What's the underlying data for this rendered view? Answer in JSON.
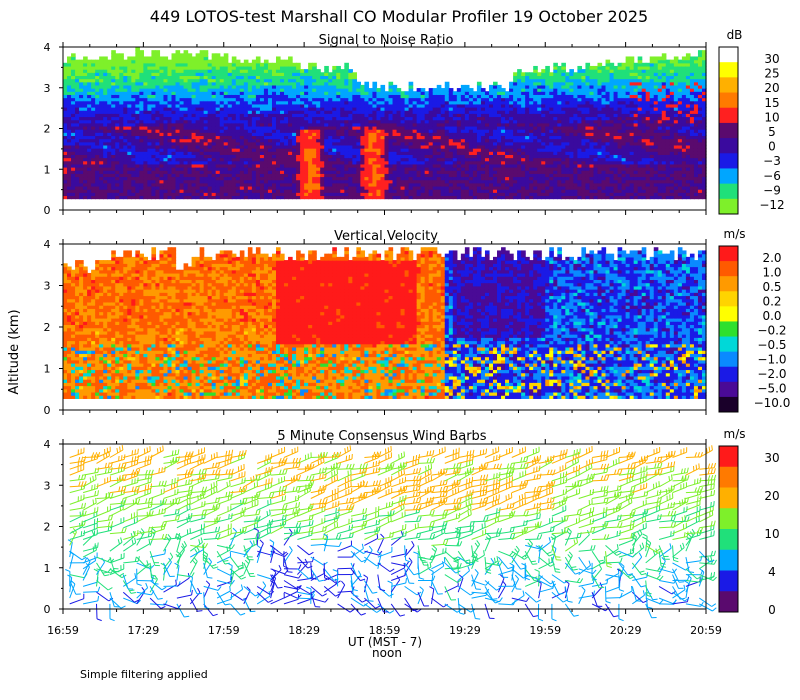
{
  "title": "449 LOTOS-test Marshall CO Modular Profiler 19 October 2025",
  "ylabel": "Altitude (km)",
  "xlabel": "UT  (MST - 7)",
  "noon_label": "noon",
  "footnote": "Simple filtering applied",
  "x_ticks": [
    "16:59",
    "17:29",
    "17:59",
    "18:29",
    "18:59",
    "19:29",
    "19:59",
    "20:29",
    "20:59"
  ],
  "chart_data": [
    {
      "type": "heatmap",
      "title": "Signal to Noise Ratio",
      "ylabel": "Altitude (km)",
      "ylim": [
        0,
        4
      ],
      "yticks": [
        "0",
        "1",
        "2",
        "3",
        "4"
      ],
      "xlim": [
        "16:59",
        "20:59"
      ],
      "colorbar": {
        "unit": "dB",
        "labels": [
          "30",
          "25",
          "20",
          "15",
          "10",
          "5",
          "0",
          "−3",
          "−6",
          "−9",
          "−12"
        ],
        "colors": [
          "#ffffff",
          "#ffff00",
          "#ffb000",
          "#ff7a00",
          "#ff2020",
          "#5a0a6e",
          "#3a0a9e",
          "#1a1ae6",
          "#00a6ff",
          "#20e07a",
          "#7ef02a"
        ]
      },
      "features": {
        "top_of_data_km": 3.8,
        "near_surface_snr_db": 10,
        "afternoon_convective_plumes_db": 15
      }
    },
    {
      "type": "heatmap",
      "title": "Vertical Velocity",
      "ylabel": "Altitude (km)",
      "ylim": [
        0,
        4
      ],
      "yticks": [
        "0",
        "1",
        "2",
        "3",
        "4"
      ],
      "xlim": [
        "16:59",
        "20:59"
      ],
      "colorbar": {
        "unit": "m/s",
        "labels": [
          "2.0",
          "1.0",
          "0.5",
          "0.2",
          "0.0",
          "−0.2",
          "−0.5",
          "−1.0",
          "−2.0",
          "−5.0",
          "−10.0"
        ],
        "colors": [
          "#ff1a1a",
          "#ff5a00",
          "#ff9a00",
          "#ffd400",
          "#ffff00",
          "#2ee02e",
          "#00d8d8",
          "#0a8aff",
          "#1a1ae6",
          "#4a0a96",
          "#1a002a"
        ]
      },
      "features": {
        "updraft_period": [
          "16:59",
          "19:04"
        ],
        "downdraft_period": [
          "19:04",
          "20:59"
        ],
        "peak_updraft_m_s": 2.0,
        "peak_downdraft_m_s": -5.0
      }
    },
    {
      "type": "wind_barbs",
      "title": "5 Minute Consensus Wind Barbs",
      "ylabel": "Altitude (km)",
      "ylim": [
        0,
        4
      ],
      "yticks": [
        "0",
        "1",
        "2",
        "3",
        "4"
      ],
      "xlim": [
        "16:59",
        "20:59"
      ],
      "colorbar": {
        "unit": "m/s",
        "labels": [
          "30",
          "20",
          "10",
          "4",
          "0"
        ],
        "colors": [
          "#ff1a1a",
          "#ff7a00",
          "#ffb000",
          "#7ef02a",
          "#20e07a",
          "#00a6ff",
          "#1a1ae6",
          "#5a0a6e"
        ]
      },
      "features": {
        "upper_level_wind_m_s": 13,
        "low_level_wind_m_s": 4,
        "interval_minutes": 5
      }
    }
  ]
}
